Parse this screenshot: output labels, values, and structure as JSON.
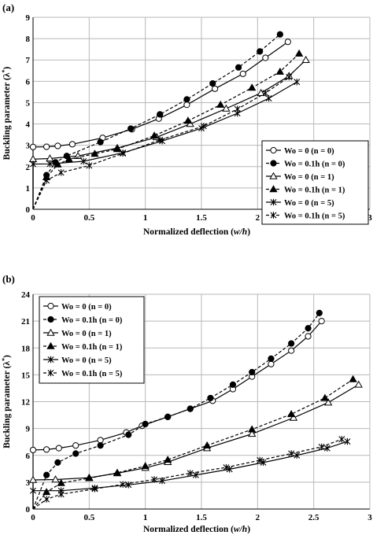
{
  "chart_data": [
    {
      "type": "line",
      "panel_label": "(a)",
      "xlabel": "Normalized deflection (",
      "xlabel_var": "w/h",
      "xlabel_close": ")",
      "ylabel": "Buckling parameter (λ",
      "ylabel_sup": "*",
      "ylabel_close": ")",
      "xlim": [
        0,
        3
      ],
      "ylim": [
        0,
        9
      ],
      "xticks": [
        0,
        0.5,
        1,
        1.5,
        2,
        2.5,
        3
      ],
      "xtick_labels": [
        "0",
        "0.5",
        "1",
        "1.5",
        "2",
        "2.5",
        "3"
      ],
      "yticks": [
        0,
        1,
        2,
        3,
        4,
        5,
        6,
        7,
        8,
        9
      ],
      "ytick_labels": [
        "0",
        "1",
        "2",
        "3",
        "4",
        "5",
        "6",
        "7",
        "8",
        "9"
      ],
      "grid": true,
      "legend_position": "lower-right",
      "series": [
        {
          "name": "Wo = 0 (n = 0)",
          "marker": "circle-open",
          "dash": false,
          "x": [
            0,
            0,
            0.12,
            0.22,
            0.35,
            0.62,
            0.88,
            1.12,
            1.37,
            1.62,
            1.87,
            2.07,
            2.27
          ],
          "y": [
            0,
            2.92,
            2.93,
            2.97,
            3.05,
            3.35,
            3.75,
            4.25,
            4.9,
            5.65,
            6.35,
            7.1,
            7.85
          ]
        },
        {
          "name": "Wo = 0.1h (n = 0)",
          "marker": "circle-filled",
          "dash": true,
          "x": [
            0,
            0.12,
            0.2,
            0.3,
            0.6,
            0.87,
            1.13,
            1.37,
            1.6,
            1.83,
            2.02,
            2.2
          ],
          "y": [
            0,
            1.6,
            2.2,
            2.5,
            3.15,
            3.78,
            4.45,
            5.15,
            5.9,
            6.65,
            7.4,
            8.2
          ]
        },
        {
          "name": "Wo = 0 (n = 1)",
          "marker": "triangle-open",
          "dash": false,
          "x": [
            0,
            0,
            0.15,
            0.4,
            0.75,
            1.1,
            1.4,
            1.72,
            2.03,
            2.28,
            2.43
          ],
          "y": [
            0,
            2.35,
            2.38,
            2.5,
            2.87,
            3.38,
            4.0,
            4.72,
            5.45,
            6.25,
            7.0
          ]
        },
        {
          "name": "Wo = 0.1h (n = 1)",
          "marker": "triangle-filled",
          "dash": true,
          "x": [
            0,
            0.12,
            0.22,
            0.32,
            0.55,
            0.75,
            1.08,
            1.38,
            1.67,
            1.95,
            2.2,
            2.37
          ],
          "y": [
            0,
            1.5,
            2.1,
            2.35,
            2.6,
            2.82,
            3.45,
            4.15,
            4.9,
            5.7,
            6.45,
            7.3
          ]
        },
        {
          "name": "Wo = 0 (n = 5)",
          "marker": "star",
          "dash": false,
          "x": [
            0,
            0,
            0.15,
            0.45,
            0.8,
            1.15,
            1.5,
            1.82,
            2.1,
            2.35
          ],
          "y": [
            0,
            2.12,
            2.13,
            2.25,
            2.65,
            3.2,
            3.8,
            4.5,
            5.2,
            5.97
          ]
        },
        {
          "name": "Wo = 0.1h (n = 5)",
          "marker": "star",
          "dash": true,
          "x": [
            0,
            0.12,
            0.25,
            0.5,
            0.8,
            1.13,
            1.52,
            1.82,
            2.07,
            2.28
          ],
          "y": [
            0,
            1.35,
            1.72,
            2.05,
            2.62,
            3.25,
            3.9,
            4.7,
            5.45,
            6.2
          ]
        }
      ]
    },
    {
      "type": "line",
      "panel_label": "(b)",
      "xlabel": "Normalized deflection (",
      "xlabel_var": "w/h",
      "xlabel_close": ")",
      "ylabel": "Buckling parameter (λ",
      "ylabel_sup": "*",
      "ylabel_close": ")",
      "xlim": [
        0,
        3
      ],
      "ylim": [
        0,
        24
      ],
      "xticks": [
        0,
        0.5,
        1,
        1.5,
        2,
        2.5,
        3
      ],
      "xtick_labels": [
        "0",
        "0.5",
        "1",
        "1.5",
        "2",
        "2.5",
        "3"
      ],
      "yticks": [
        0,
        3,
        6,
        9,
        12,
        15,
        18,
        21,
        24
      ],
      "ytick_labels": [
        "0",
        "3",
        "6",
        "9",
        "12",
        "15",
        "18",
        "21",
        "24"
      ],
      "grid": true,
      "legend_position": "top-left",
      "series": [
        {
          "name": "Wo = 0 (n = 0)",
          "marker": "circle-open",
          "dash": false,
          "x": [
            0,
            0,
            0.12,
            0.23,
            0.38,
            0.6,
            0.83,
            0.97,
            1.2,
            1.4,
            1.6,
            1.78,
            1.95,
            2.12,
            2.3,
            2.45,
            2.57
          ],
          "y": [
            0,
            6.6,
            6.65,
            6.8,
            7.1,
            7.7,
            8.55,
            9.3,
            10.3,
            11.2,
            12.1,
            13.4,
            14.8,
            16.2,
            17.7,
            19.3,
            21.0
          ]
        },
        {
          "name": "Wo = 0.1h (n = 0)",
          "marker": "circle-filled",
          "dash": true,
          "x": [
            0,
            0.12,
            0.22,
            0.38,
            0.6,
            0.85,
            1.0,
            1.2,
            1.4,
            1.58,
            1.78,
            1.95,
            2.12,
            2.3,
            2.45,
            2.55
          ],
          "y": [
            0,
            3.8,
            5.2,
            6.2,
            7.1,
            8.3,
            9.5,
            10.3,
            11.2,
            12.4,
            13.9,
            15.3,
            16.8,
            18.5,
            20.2,
            21.9
          ]
        },
        {
          "name": "Wo = 0 (n = 1)",
          "marker": "triangle-open",
          "dash": false,
          "x": [
            0,
            0,
            0.2,
            0.5,
            0.75,
            1.0,
            1.2,
            1.55,
            1.95,
            2.32,
            2.63,
            2.9
          ],
          "y": [
            0,
            3.25,
            3.3,
            3.5,
            4.0,
            4.6,
            5.25,
            6.8,
            8.4,
            10.2,
            11.9,
            13.9
          ]
        },
        {
          "name": "Wo = 0.1h (n = 1)",
          "marker": "triangle-filled",
          "dash": true,
          "x": [
            0,
            0.12,
            0.25,
            0.5,
            0.75,
            1.0,
            1.2,
            1.55,
            1.95,
            2.3,
            2.6,
            2.85
          ],
          "y": [
            0,
            1.9,
            2.9,
            3.45,
            4.05,
            4.8,
            5.5,
            7.1,
            8.9,
            10.6,
            12.4,
            14.5
          ]
        },
        {
          "name": "Wo = 0 (n = 5)",
          "marker": "star",
          "dash": false,
          "x": [
            0,
            0,
            0.25,
            0.55,
            0.85,
            1.15,
            1.45,
            1.75,
            2.05,
            2.35,
            2.62,
            2.8
          ],
          "y": [
            0,
            2.05,
            2.05,
            2.35,
            2.7,
            3.15,
            3.8,
            4.45,
            5.2,
            6.0,
            6.8,
            7.55
          ]
        },
        {
          "name": "Wo = 0.1h (n = 5)",
          "marker": "star",
          "dash": true,
          "x": [
            0,
            0.12,
            0.25,
            0.55,
            0.8,
            1.08,
            1.4,
            1.72,
            2.02,
            2.3,
            2.57,
            2.75
          ],
          "y": [
            0,
            1.1,
            1.65,
            2.25,
            2.75,
            3.3,
            4.0,
            4.65,
            5.45,
            6.2,
            6.95,
            7.8
          ]
        }
      ]
    }
  ]
}
